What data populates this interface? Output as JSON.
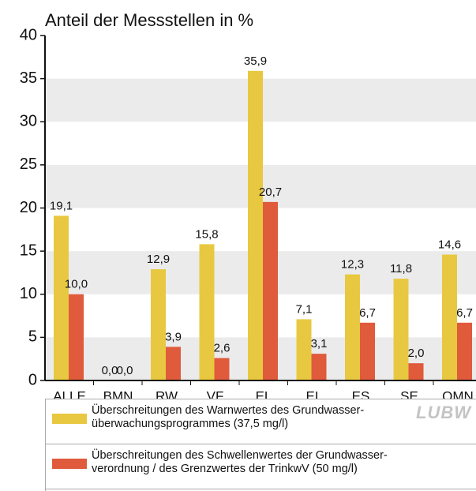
{
  "chart_data": {
    "type": "bar",
    "title": "Anteil der Messstellen in %",
    "logo": "LUBW",
    "categories": [
      "ALLE",
      "BMN",
      "RW",
      "VF",
      "EL",
      "EI",
      "ES",
      "SE",
      "QMN"
    ],
    "series": [
      {
        "name": "Überschreitungen des Warnwertes des Grundwasser-\nüberwachungsprogrammes  (37,5 mg/l)",
        "color": "#e8c840",
        "values": [
          19.1,
          0,
          12.9,
          15.8,
          35.9,
          7.1,
          12.3,
          11.8,
          14.6
        ],
        "value_labels": [
          "19,1",
          "0,0",
          "12,9",
          "15,8",
          "35,9",
          "7,1",
          "12,3",
          "11,8",
          "14,6"
        ]
      },
      {
        "name": "Überschreitungen des Schwellenwertes der Grundwasser-\nverordnung / des Grenzwertes der TrinkwV (50 mg/l)",
        "color": "#e05a3c",
        "values": [
          10.0,
          0,
          3.9,
          2.6,
          20.7,
          3.1,
          6.7,
          2.0,
          6.7
        ],
        "value_labels": [
          "10,0",
          "0,0",
          "3,9",
          "2,6",
          "20,7",
          "3,1",
          "6,7",
          "2,0",
          "6,7"
        ]
      }
    ],
    "ylim": [
      0,
      40
    ],
    "yticks": [
      0,
      5,
      10,
      15,
      20,
      25,
      30,
      35,
      40
    ],
    "grid": "bands"
  }
}
